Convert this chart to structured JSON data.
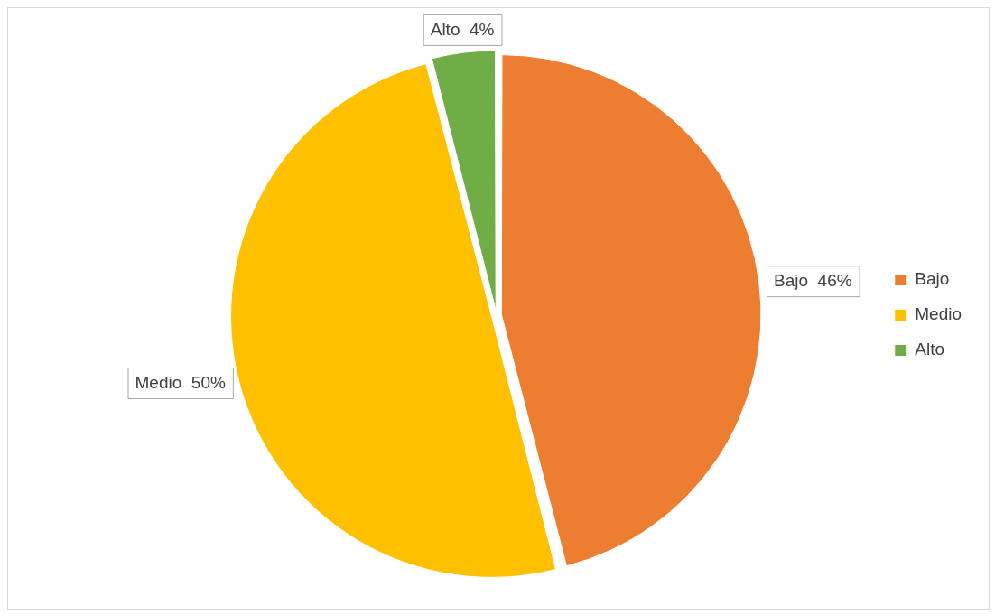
{
  "chart_data": {
    "type": "pie",
    "categories": [
      "Bajo",
      "Medio",
      "Alto"
    ],
    "values": [
      46,
      50,
      4
    ],
    "colors": [
      "#ed7d31",
      "#ffc000",
      "#70ad47"
    ],
    "value_labels": [
      "46%",
      "50%",
      "4%"
    ],
    "legend": "right"
  }
}
